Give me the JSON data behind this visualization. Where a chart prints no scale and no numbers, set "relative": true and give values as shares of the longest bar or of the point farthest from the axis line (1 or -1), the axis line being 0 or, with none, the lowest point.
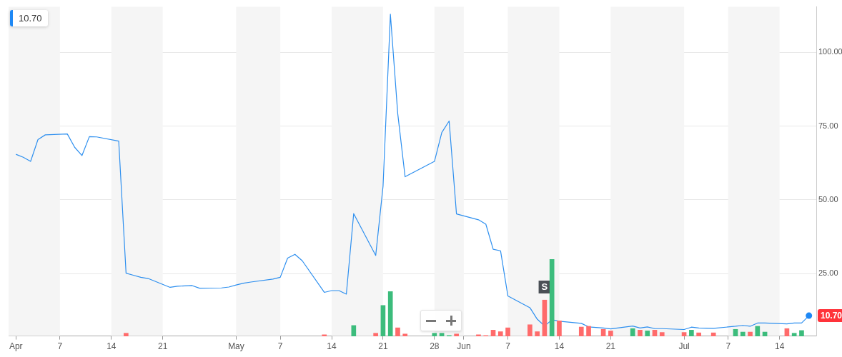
{
  "chart_data": [
    {
      "type": "line",
      "xlim": [
        "--03-31",
        "--07-19"
      ],
      "ylim": [
        3.8,
        115.4
      ],
      "xticks": [
        {
          "value": "--04-01",
          "label": "Apr"
        },
        {
          "value": "--04-07",
          "label": "7"
        },
        {
          "value": "--04-14",
          "label": "14"
        },
        {
          "value": "--04-21",
          "label": "21"
        },
        {
          "value": "--05-01",
          "label": "May"
        },
        {
          "value": "--05-07",
          "label": "7"
        },
        {
          "value": "--05-14",
          "label": "14"
        },
        {
          "value": "--05-21",
          "label": "21"
        },
        {
          "value": "--05-28",
          "label": "28"
        },
        {
          "value": "--06-01",
          "label": "Jun"
        },
        {
          "value": "--06-07",
          "label": "7"
        },
        {
          "value": "--06-14",
          "label": "14"
        },
        {
          "value": "--06-21",
          "label": "21"
        },
        {
          "value": "--07-01",
          "label": "Jul"
        },
        {
          "value": "--07-07",
          "label": "7"
        },
        {
          "value": "--07-14",
          "label": "14"
        }
      ],
      "yticks": [
        {
          "value": 25,
          "label": "25.00"
        },
        {
          "value": 50,
          "label": "50.00"
        },
        {
          "value": 75,
          "label": "75.00"
        },
        {
          "value": 100,
          "label": "100.00"
        }
      ],
      "grid": "y",
      "legend": false,
      "marker": "none",
      "line_style": "solid",
      "bands": [
        {
          "axis": "x",
          "from": "--03-31",
          "to": "--04-07",
          "color": "#f5f5f5"
        },
        {
          "axis": "x",
          "from": "--04-14",
          "to": "--04-21",
          "color": "#f5f5f5"
        },
        {
          "axis": "x",
          "from": "--05-01",
          "to": "--05-07",
          "color": "#f5f5f5"
        },
        {
          "axis": "x",
          "from": "--05-14",
          "to": "--05-21",
          "color": "#f5f5f5"
        },
        {
          "axis": "x",
          "from": "--05-28",
          "to": "--06-01",
          "color": "#f5f5f5"
        },
        {
          "axis": "x",
          "from": "--06-07",
          "to": "--06-14",
          "color": "#f5f5f5"
        },
        {
          "axis": "x",
          "from": "--06-21",
          "to": "--07-01",
          "color": "#f5f5f5"
        },
        {
          "axis": "x",
          "from": "--07-07",
          "to": "--07-14",
          "color": "#f5f5f5"
        }
      ],
      "annotations": [
        "10.70",
        {
          "text": "S",
          "x": "--06-12",
          "y": 20.4
        },
        {
          "text": "10.70",
          "x": "--07-18",
          "y": 10.7
        }
      ],
      "series": [
        {
          "color": "#2d8fef",
          "x": [
            "--04-01",
            "--04-02",
            "--04-03",
            "--04-04",
            "--04-05",
            "--04-08",
            "--04-09",
            "--04-10",
            "--04-11",
            "--04-12",
            "--04-15",
            "--04-16",
            "--04-17",
            "--04-18",
            "--04-19",
            "--04-22",
            "--04-23",
            "--04-24",
            "--04-25",
            "--04-26",
            "--04-29",
            "--04-30",
            "--05-01",
            "--05-02",
            "--05-03",
            "--05-06",
            "--05-07",
            "--05-08",
            "--05-09",
            "--05-10",
            "--05-13",
            "--05-14",
            "--05-15",
            "--05-16",
            "--05-17",
            "--05-20",
            "--05-21",
            "--05-22",
            "--05-23",
            "--05-24",
            "--05-28",
            "--05-29",
            "--05-30",
            "--05-31",
            "--06-03",
            "--06-04",
            "--06-05",
            "--06-06",
            "--06-07",
            "--06-10",
            "--06-11",
            "--06-12",
            "--06-13",
            "--06-14",
            "--06-17",
            "--06-18",
            "--06-20",
            "--06-21",
            "--06-24",
            "--06-25",
            "--06-26",
            "--06-27",
            "--06-28",
            "--07-01",
            "--07-02",
            "--07-03",
            "--07-05",
            "--07-08",
            "--07-09",
            "--07-10",
            "--07-11",
            "--07-12",
            "--07-15",
            "--07-16",
            "--07-17",
            "--07-18"
          ],
          "values": [
            65.4,
            64.4,
            63.0,
            70.4,
            72.0,
            72.3,
            67.8,
            65.0,
            71.4,
            71.3,
            69.9,
            25.1,
            24.4,
            23.7,
            23.3,
            20.3,
            20.7,
            20.8,
            20.9,
            20.0,
            20.1,
            20.4,
            21.1,
            21.7,
            22.1,
            23.1,
            23.7,
            30.2,
            31.5,
            29.3,
            18.6,
            19.2,
            19.2,
            18.0,
            45.3,
            31.1,
            54.6,
            112.9,
            79.2,
            57.8,
            63.0,
            72.8,
            76.7,
            45.2,
            43.2,
            41.7,
            33.2,
            32.7,
            17.4,
            13.4,
            9.5,
            7.2,
            9.3,
            8.8,
            8.1,
            6.9,
            6.5,
            6.2,
            7.2,
            6.5,
            6.9,
            6.3,
            6.3,
            6.0,
            6.8,
            6.5,
            6.4,
            7.1,
            7.4,
            7.1,
            8.2,
            8.2,
            7.9,
            8.2,
            8.2,
            10.7
          ]
        }
      ]
    },
    {
      "type": "bar",
      "relative": true,
      "xlim": [
        "--03-31",
        "--07-19"
      ],
      "legend": false,
      "x": [
        "--04-16",
        "--05-13",
        "--05-17",
        "--05-20",
        "--05-21",
        "--05-22",
        "--05-23",
        "--05-24",
        "--05-28",
        "--05-29",
        "--05-30",
        "--05-31",
        "--06-03",
        "--06-04",
        "--06-05",
        "--06-06",
        "--06-07",
        "--06-10",
        "--06-11",
        "--06-12",
        "--06-13",
        "--06-14",
        "--06-17",
        "--06-18",
        "--06-20",
        "--06-21",
        "--06-24",
        "--06-25",
        "--06-26",
        "--06-27",
        "--06-28",
        "--07-01",
        "--07-02",
        "--07-03",
        "--07-05",
        "--07-08",
        "--07-09",
        "--07-10",
        "--07-11",
        "--07-12",
        "--07-15",
        "--07-16",
        "--07-17"
      ],
      "values": [
        0.04,
        0.02,
        0.14,
        0.04,
        0.4,
        0.58,
        0.11,
        0.03,
        0.04,
        0.04,
        0.01,
        0.03,
        0.02,
        0.01,
        0.08,
        0.06,
        0.11,
        0.15,
        0.06,
        0.47,
        1,
        0.2,
        0.12,
        0.13,
        0.09,
        0.07,
        0.1,
        0.08,
        0.07,
        0.08,
        0.05,
        0.05,
        0.08,
        0.045,
        0.045,
        0.09,
        0.055,
        0.055,
        0.13,
        0.055,
        0.1,
        0.04,
        0.075
      ],
      "colors": [
        "#ff6b6b",
        "#ff6b6b",
        "#3cbc7c",
        "#ff6b6b",
        "#3cbc7c",
        "#3cbc7c",
        "#ff6b6b",
        "#ff6b6b",
        "#3cbc7c",
        "#3cbc7c",
        "#3cbc7c",
        "#ff6b6b",
        "#ff6b6b",
        "#ff6b6b",
        "#ff6b6b",
        "#ff6b6b",
        "#ff6b6b",
        "#ff6b6b",
        "#ff6b6b",
        "#ff6b6b",
        "#3cbc7c",
        "#ff6b6b",
        "#ff6b6b",
        "#ff6b6b",
        "#ff6b6b",
        "#ff6b6b",
        "#3cbc7c",
        "#ff6b6b",
        "#3cbc7c",
        "#ff6b6b",
        "#ff6b6b",
        "#ff6b6b",
        "#3cbc7c",
        "#ff6b6b",
        "#ff6b6b",
        "#3cbc7c",
        "#3cbc7c",
        "#ff6b6b",
        "#3cbc7c",
        "#3cbc7c",
        "#ff6b6b",
        "#3cbc7c",
        "#3cbc7c"
      ]
    }
  ]
}
